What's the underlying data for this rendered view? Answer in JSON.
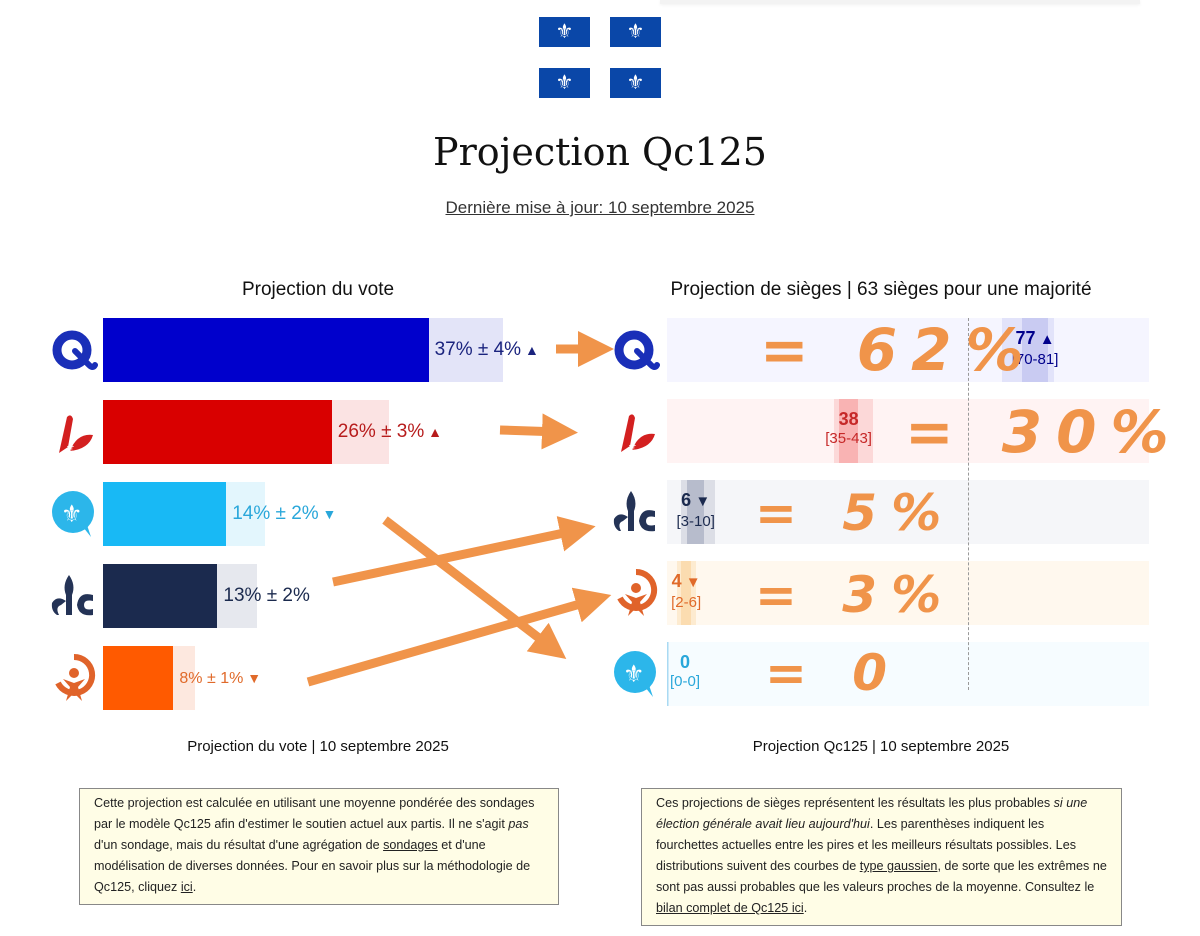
{
  "page": {
    "title": "Projection Qc125",
    "last_updated": "Dernière mise à jour: 10 septembre 2025",
    "flag_icon_symbol": "⚜"
  },
  "colors": {
    "annotation_orange": "#f0944a",
    "note_background": "#fffde6"
  },
  "chart_data": [
    {
      "type": "bar",
      "title": "Projection du vote",
      "caption": "Projection du vote | 10 septembre 2025",
      "unit": "%",
      "xlim": [
        0,
        55
      ],
      "parties": [
        {
          "id": "caq-like",
          "logo": "q-logo",
          "value": 37,
          "error": 4,
          "trend": "up",
          "label": "37% ± 4%",
          "trend_symbol": "▲",
          "color": "#0000cc",
          "light": "#e3e4f8",
          "text_color": "#1a237e"
        },
        {
          "id": "plq",
          "logo": "plq-logo",
          "value": 26,
          "error": 3,
          "trend": "up",
          "label": "26% ± 3%",
          "trend_symbol": "▲",
          "color": "#d90000",
          "light": "#fbe3e3",
          "text_color": "#b71c1c"
        },
        {
          "id": "pq-bubble",
          "logo": "bubble-fleur-logo",
          "value": 14,
          "error": 2,
          "trend": "down",
          "label": "14% ± 2%",
          "trend_symbol": "▼",
          "color": "#18b9f5",
          "light": "#e3f6fd",
          "text_color": "#29a7da"
        },
        {
          "id": "pcq",
          "logo": "fleur-c-logo",
          "value": 13,
          "error": 2,
          "trend": "none",
          "label": "13% ± 2%",
          "trend_symbol": "",
          "color": "#1b2a4e",
          "light": "#e6e8ee",
          "text_color": "#1b2a4e"
        },
        {
          "id": "qs",
          "logo": "orange-figure-logo",
          "value": 8,
          "error": 1,
          "trend": "down",
          "label": "8% ± 1%",
          "trend_symbol": "▼",
          "color": "#ff5a00",
          "light": "#fde8df",
          "text_color": "#e06a2a"
        }
      ]
    },
    {
      "type": "bar",
      "title": "Projection de sièges | 63 sièges pour une majorité",
      "caption": "Projection Qc125 | 10 septembre 2025",
      "unit": "seats",
      "majority": 63,
      "xlim": [
        0,
        101
      ],
      "parties": [
        {
          "id": "caq-like",
          "logo": "q-logo",
          "value": 77,
          "low": 70,
          "high": 81,
          "trend": "up",
          "value_label": "77",
          "trend_symbol": "▲",
          "range_label": "[70-81]",
          "row_bg": "#f5f5ff",
          "band_outer": "#e2e3fa",
          "band_inner": "#c9cbf2",
          "text_color": "#00008b",
          "handwritten": "= 62%"
        },
        {
          "id": "plq",
          "logo": "plq-logo",
          "value": 38,
          "low": 35,
          "high": 43,
          "trend": "none",
          "value_label": "38",
          "trend_symbol": "",
          "range_label": "[35-43]",
          "row_bg": "#fff3f3",
          "band_outer": "#fcd8d8",
          "band_inner": "#f9b3b3",
          "text_color": "#c62828",
          "handwritten": "= 30%"
        },
        {
          "id": "pcq",
          "logo": "fleur-c-logo",
          "value": 6,
          "low": 3,
          "high": 10,
          "trend": "down",
          "value_label": "6",
          "trend_symbol": "▼",
          "range_label": "[3-10]",
          "row_bg": "#f5f6f9",
          "band_outer": "#dcdee6",
          "band_inner": "#b7bccc",
          "text_color": "#1b2a4e",
          "handwritten": "= 5%"
        },
        {
          "id": "qs",
          "logo": "orange-figure-logo",
          "value": 4,
          "low": 2,
          "high": 6,
          "trend": "down",
          "value_label": "4",
          "trend_symbol": "▼",
          "range_label": "[2-6]",
          "row_bg": "#fff8ee",
          "band_outer": "#fdebd0",
          "band_inner": "#fbdcb0",
          "text_color": "#e06a2a",
          "handwritten": "= 3%"
        },
        {
          "id": "pq-bubble",
          "logo": "bubble-fleur-logo",
          "value": 0,
          "low": 0,
          "high": 0,
          "trend": "none",
          "value_label": "0",
          "trend_symbol": "",
          "range_label": "[0-0]",
          "row_bg": "#f6fcff",
          "band_outer": "#cfeaf8",
          "band_inner": "#a9daf3",
          "text_color": "#29a7da",
          "handwritten": "= 0"
        }
      ]
    }
  ],
  "notes": {
    "vote": {
      "p1": "Cette projection est calculée en utilisant une moyenne pondérée des sondages par le modèle Qc125 afin d'estimer le soutien actuel aux partis. Il ne s'agit ",
      "p1_em": "pas",
      "p2": " d'un sondage, mais du résultat d'une agrégation de ",
      "link1": "sondages",
      "p3": " et d'une modélisation de diverses données. Pour en savoir plus sur la méthodologie de Qc125, cliquez ",
      "link2": "ici",
      "p4": "."
    },
    "seats": {
      "p1": "Ces projections de sièges représentent les résultats les plus probables ",
      "p1_em": "si une élection générale avait lieu aujourd'hui",
      "p2": ". Les parenthèses indiquent les fourchettes actuelles entre les pires et les meilleurs résultats possibles. Les distributions suivent des courbes de ",
      "link1": "type gaussien",
      "p3": ", de sorte que les extrêmes ne sont pas aussi probables que les valeurs proches de la moyenne. Consultez le ",
      "link2": "bilan complet de Qc125 ici",
      "p4": "."
    }
  },
  "annotations": {
    "handwritten_equals": [
      "= 62%",
      "= 30%",
      "= 5%",
      "= 3%",
      "= 0"
    ]
  }
}
